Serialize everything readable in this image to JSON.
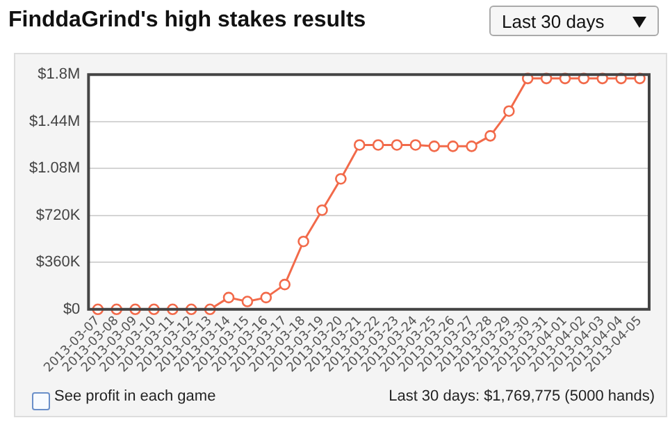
{
  "chart_data": {
    "type": "line",
    "title": "FinddaGrind's high stakes results",
    "categories": [
      "2013-03-07",
      "2013-03-08",
      "2013-03-09",
      "2013-03-10",
      "2013-03-11",
      "2013-03-12",
      "2013-03-13",
      "2013-03-14",
      "2013-03-15",
      "2013-03-16",
      "2013-03-17",
      "2013-03-18",
      "2013-03-19",
      "2013-03-20",
      "2013-03-21",
      "2013-03-22",
      "2013-03-23",
      "2013-03-24",
      "2013-03-25",
      "2013-03-26",
      "2013-03-27",
      "2013-03-28",
      "2013-03-29",
      "2013-03-30",
      "2013-03-31",
      "2013-04-01",
      "2013-04-02",
      "2013-04-03",
      "2013-04-04",
      "2013-04-05"
    ],
    "series": [
      {
        "color": "#f26a4a",
        "values": [
          0,
          0,
          0,
          0,
          0,
          0,
          0,
          90000,
          60000,
          90000,
          190000,
          520000,
          760000,
          1000000,
          1260000,
          1260000,
          1260000,
          1260000,
          1250000,
          1250000,
          1250000,
          1330000,
          1520000,
          1770000,
          1770000,
          1770000,
          1770000,
          1770000,
          1770000,
          1770000
        ]
      }
    ],
    "ylim": [
      0,
      1800000
    ],
    "yticks": [
      {
        "value": 0,
        "label": "$0"
      },
      {
        "value": 360000,
        "label": "$360K"
      },
      {
        "value": 720000,
        "label": "$720K"
      },
      {
        "value": 1080000,
        "label": "$1.08M"
      },
      {
        "value": 1440000,
        "label": "$1.44M"
      },
      {
        "value": 1800000,
        "label": "$1.8M"
      }
    ],
    "grid": "y",
    "legend": false,
    "marker": "circle",
    "line_style": "solid",
    "annotations": [
      "Last 30 days",
      "See profit in each game",
      "Last 30 days: $1,769,775 (5000 hands)"
    ]
  }
}
